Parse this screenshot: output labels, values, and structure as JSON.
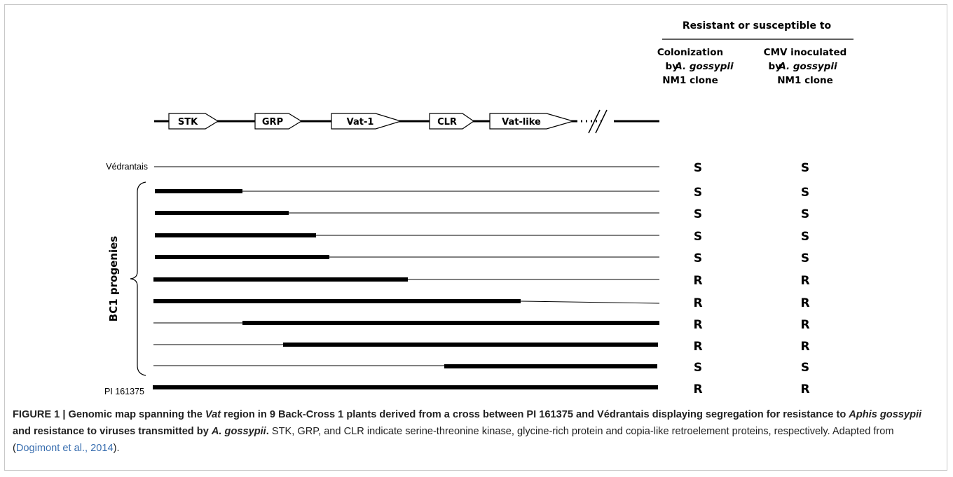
{
  "header": {
    "group_title": "Resistant or susceptible to",
    "col1": [
      "Colonization",
      "by",
      "A. gossypii",
      "NM1 clone"
    ],
    "col2": [
      "CMV inoculated",
      "by",
      "A. gossypii",
      "NM1 clone"
    ]
  },
  "genes": [
    {
      "label": "STK"
    },
    {
      "label": "GRP"
    },
    {
      "label": "Vat-1"
    },
    {
      "label": "CLR"
    },
    {
      "label": "Vat-like"
    }
  ],
  "bracket_label": "BC1 progenies",
  "rows": [
    {
      "label": "Védrantais",
      "thick": "none",
      "col1": "S",
      "col2": "S"
    },
    {
      "label": "",
      "thick": "left",
      "col1": "S",
      "col2": "S"
    },
    {
      "label": "",
      "thick": "left",
      "col1": "S",
      "col2": "S"
    },
    {
      "label": "",
      "thick": "left",
      "col1": "S",
      "col2": "S"
    },
    {
      "label": "",
      "thick": "left",
      "col1": "S",
      "col2": "S"
    },
    {
      "label": "",
      "thick": "left",
      "col1": "R",
      "col2": "R"
    },
    {
      "label": "",
      "thick": "left",
      "col1": "R",
      "col2": "R"
    },
    {
      "label": "",
      "thick": "right",
      "col1": "R",
      "col2": "R"
    },
    {
      "label": "",
      "thick": "right",
      "col1": "R",
      "col2": "R"
    },
    {
      "label": "",
      "thick": "right",
      "col1": "S",
      "col2": "S"
    },
    {
      "label": "PI 161375",
      "thick": "full",
      "col1": "R",
      "col2": "R"
    }
  ],
  "caption": {
    "fig_label": "FIGURE 1 | ",
    "title_1": "Genomic map spanning the ",
    "title_vat": "Vat",
    "title_2": " region in 9 Back-Cross 1 plants derived from a cross between PI 161375 and Védrantais displaying segregation for resistance to ",
    "title_aphis": "Aphis gossypii",
    "title_3": " and resistance to viruses transmitted by ",
    "title_ag": "A. gossypii",
    "title_4": ".",
    "body": " STK, GRP, and CLR indicate serine-threonine kinase, glycine-rich protein and copia-like retroelement proteins, respectively. Adapted from (",
    "citation": "Dogimont et al., 2014",
    "end": ")."
  }
}
